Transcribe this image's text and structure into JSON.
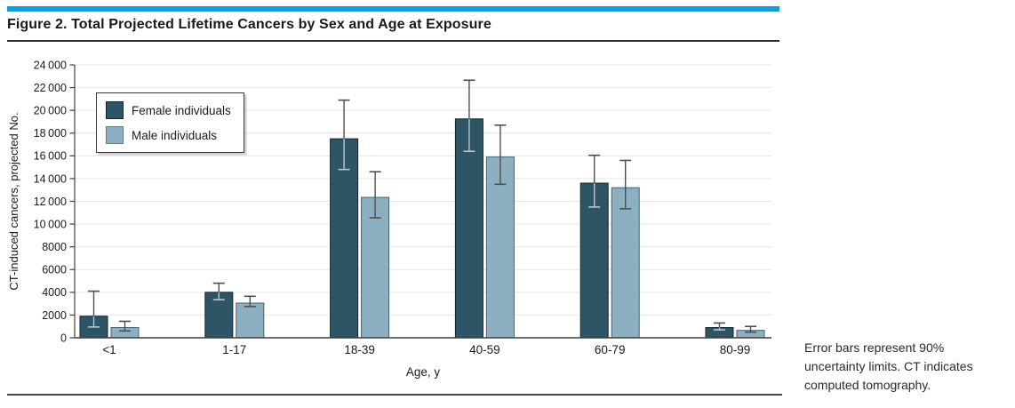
{
  "figure": {
    "title": "Figure 2. Total Projected Lifetime Cancers by Sex and Age at Exposure",
    "accent_color": "#149cd6"
  },
  "footnote": {
    "lines": [
      "Error bars represent 90%",
      "uncertainty limits. CT indicates",
      "computed tomography."
    ]
  },
  "chart_data": {
    "type": "bar",
    "title": "Total Projected Lifetime Cancers by Sex and Age at Exposure",
    "categories": [
      "<1",
      "1-17",
      "18-39",
      "40-59",
      "60-79",
      "80-99"
    ],
    "series": [
      {
        "name": "Female individuals",
        "color": "#2e5565",
        "border_color": "#16242c",
        "values": [
          1900,
          4000,
          17500,
          19250,
          13600,
          900
        ],
        "err_low": [
          950,
          3350,
          14800,
          16400,
          11500,
          700
        ],
        "err_high": [
          4100,
          4800,
          20900,
          22650,
          16050,
          1300
        ],
        "errorbar_inner_color": "#b9c5ca"
      },
      {
        "name": "Male individuals",
        "color": "#8db0c0",
        "border_color": "#44606e",
        "values": [
          900,
          3050,
          12350,
          15900,
          13200,
          650
        ],
        "err_low": [
          600,
          2750,
          10550,
          13500,
          11350,
          500
        ],
        "err_high": [
          1450,
          3650,
          14600,
          18700,
          15600,
          1000
        ],
        "errorbar_inner_color": "#4f4f4f"
      }
    ],
    "xlabel": "Age, y",
    "ylabel": "CT-induced cancers, projected No.",
    "ylim": [
      0,
      24000
    ],
    "ytick_step": 2000,
    "ytick_labels": [
      "0",
      "2000",
      "4000",
      "6000",
      "8000",
      "10 000",
      "12 000",
      "14 000",
      "16 000",
      "18 000",
      "20 000",
      "22 000",
      "24 000"
    ],
    "grid": true,
    "grid_color": "#e6e6e6",
    "axis_color": "#3f3f3f",
    "errorbar_outer_color": "#4f4f4f",
    "legend_position": "upper-left"
  }
}
